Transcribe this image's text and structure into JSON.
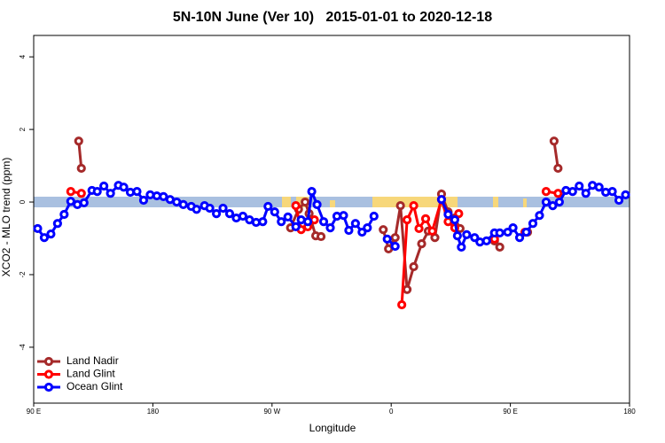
{
  "chart_data": {
    "type": "line",
    "title": "5N-10N June (Ver 10)   2015-01-01 to 2020-12-18",
    "xlabel": "Longitude",
    "ylabel": "XCO2 - MLO trend (ppm)",
    "xlim": [
      90,
      540
    ],
    "xticks": [
      {
        "value": 90,
        "label": "90 E"
      },
      180,
      {
        "value": 270,
        "label": "90 W"
      },
      {
        "value": 360,
        "label": "0"
      },
      {
        "value": 450,
        "label": "90 E"
      },
      {
        "value": 540,
        "label": "180"
      }
    ],
    "ylim": [
      -5.54,
      4.59
    ],
    "yticks": [
      -4,
      -2,
      0,
      2,
      4
    ],
    "legend": "bottom-left",
    "series": [
      {
        "name": "Land Nadir",
        "color": "#a52a2a",
        "x": [
          124,
          126,
          200,
          284,
          290,
          295,
          298,
          303,
          307,
          330,
          354,
          358,
          363,
          367,
          372,
          377,
          383,
          388,
          393,
          398,
          403,
          408,
          412,
          420,
          438,
          442,
          450,
          463,
          470,
          483,
          486
        ],
        "values": [
          1.68,
          0.93,
          null,
          -0.71,
          -0.2,
          0,
          -0.32,
          -0.93,
          -0.95,
          null,
          -0.76,
          -1.29,
          -0.98,
          -0.1,
          -2.41,
          -1.78,
          -1.15,
          -0.8,
          -0.98,
          0.22,
          -0.27,
          -0.44,
          -0.73,
          null,
          -1.07,
          -1.24,
          null,
          -0.83,
          null,
          1.68,
          0.93
        ]
      },
      {
        "name": "Land Glint",
        "color": "#ff0000",
        "x": [
          118,
          126,
          200,
          288,
          292,
          297,
          302,
          330,
          368,
          372,
          377,
          381,
          386,
          391,
          398,
          403,
          408,
          411,
          420,
          438,
          445,
          461,
          470,
          477,
          486
        ],
        "values": [
          0.29,
          0.24,
          null,
          -0.1,
          -0.76,
          -0.68,
          -0.49,
          null,
          -2.83,
          -0.49,
          -0.1,
          -0.73,
          -0.46,
          -0.8,
          0.07,
          -0.54,
          -0.71,
          -0.32,
          null,
          -1.02,
          null,
          -0.83,
          null,
          0.29,
          0.24
        ]
      },
      {
        "name": "Ocean Glint",
        "color": "#0000ff",
        "x": [
          93,
          98,
          103,
          108,
          113,
          118,
          123,
          128,
          134,
          138,
          143,
          148,
          154,
          158,
          163,
          168,
          173,
          178,
          183,
          188,
          193,
          198,
          203,
          209,
          213,
          219,
          223,
          228,
          233,
          238,
          243,
          248,
          253,
          258,
          263,
          267,
          272,
          277,
          282,
          288,
          292,
          297,
          300,
          304,
          309,
          314,
          319,
          324,
          328,
          333,
          338,
          342,
          347,
          350,
          357,
          363,
          380,
          398,
          403,
          408,
          410,
          413,
          417,
          423,
          427,
          432,
          438,
          442,
          448,
          452,
          457,
          462,
          467,
          472,
          477,
          482,
          487,
          492,
          497,
          502,
          507,
          512,
          517,
          522,
          527,
          532,
          537
        ],
        "values": [
          -0.73,
          -0.98,
          -0.88,
          -0.59,
          -0.34,
          0.02,
          -0.07,
          -0.02,
          0.32,
          0.29,
          0.44,
          0.24,
          0.46,
          0.41,
          0.27,
          0.29,
          0.05,
          0.2,
          0.17,
          0.15,
          0.07,
          0,
          -0.07,
          -0.12,
          -0.2,
          -0.1,
          -0.17,
          -0.32,
          -0.17,
          -0.32,
          -0.44,
          -0.39,
          -0.49,
          -0.56,
          -0.54,
          -0.12,
          -0.27,
          -0.54,
          -0.41,
          -0.68,
          -0.49,
          -0.54,
          0.29,
          -0.07,
          -0.54,
          -0.71,
          -0.39,
          -0.37,
          -0.78,
          -0.59,
          -0.83,
          -0.71,
          -0.39,
          null,
          -1.02,
          -1.22,
          null,
          0.07,
          -0.34,
          -0.49,
          -0.93,
          -1.24,
          -0.9,
          -0.98,
          -1.1,
          -1.07,
          -0.85,
          -0.85,
          -0.83,
          -0.71,
          -0.98,
          -0.83,
          -0.59,
          -0.37,
          0,
          -0.1,
          0,
          0.32,
          0.29,
          0.44,
          0.24,
          0.46,
          0.41,
          0.27,
          0.29,
          0.05,
          0.2
        ]
      }
    ]
  }
}
